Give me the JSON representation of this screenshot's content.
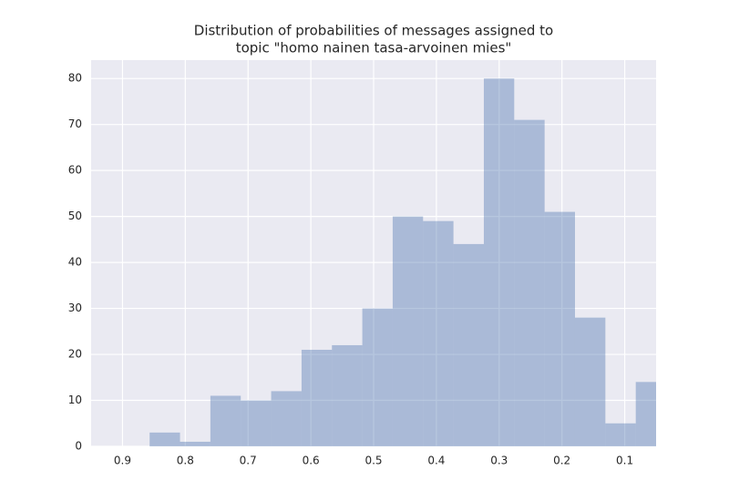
{
  "chart_data": {
    "type": "histogram",
    "title": [
      "Distribution of probabilities of messages assigned to",
      "topic \"homo nainen tasa-arvoinen mies\""
    ],
    "bins": [
      0.034,
      0.0824,
      0.1308,
      0.1792,
      0.2276,
      0.276,
      0.3244,
      0.3728,
      0.4212,
      0.4696,
      0.518,
      0.5664,
      0.6148,
      0.6632,
      0.7116,
      0.76,
      0.8084,
      0.8568
    ],
    "values": [
      14,
      5,
      28,
      51,
      71,
      80,
      44,
      49,
      50,
      30,
      22,
      21,
      12,
      10,
      11,
      1,
      3
    ],
    "color": "#4c72b0",
    "xlim": [
      0.95,
      0.05
    ],
    "xticks": [
      0.9,
      0.8,
      0.7,
      0.6,
      0.5,
      0.4,
      0.3,
      0.2,
      0.1
    ],
    "ylim": [
      0,
      84
    ],
    "yticks": [
      0,
      10,
      20,
      30,
      40,
      50,
      60,
      70,
      80
    ],
    "grid": true
  }
}
